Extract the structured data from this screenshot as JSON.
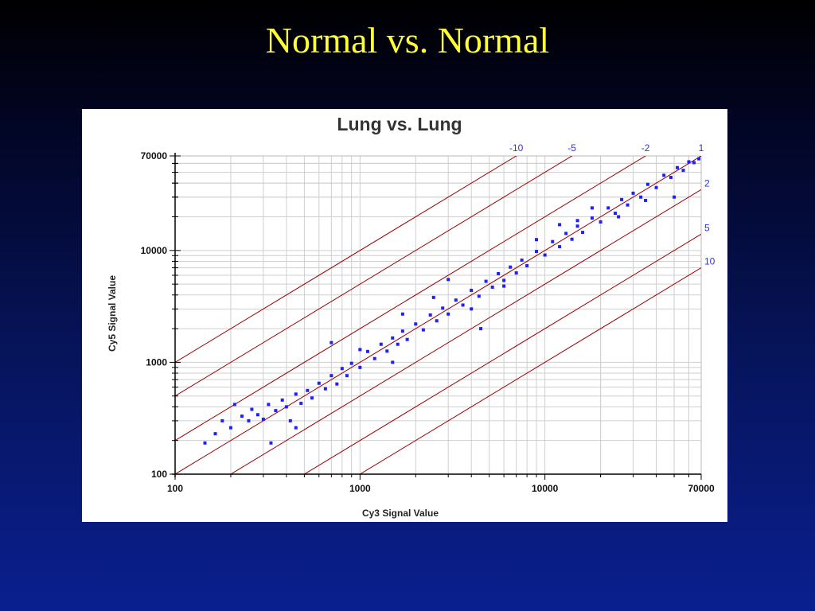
{
  "slide": {
    "title": "Normal vs. Normal"
  },
  "colors": {
    "background": "#0a1f8f",
    "title": "#ffff33",
    "points": "#1f1fff",
    "ratio_lines": "#990000",
    "ratio_labels": "#3333cc",
    "grid": "#cfcfcf"
  },
  "chart_data": {
    "type": "scatter",
    "title": "Lung vs. Lung",
    "xlabel": "Cy3 Signal Value",
    "ylabel": "Cy5 Signal Value",
    "xscale": "log",
    "yscale": "log",
    "xlim": [
      100,
      70000
    ],
    "ylim": [
      100,
      70000
    ],
    "grid": true,
    "xticks": [
      {
        "value": 100,
        "label": "100"
      },
      {
        "value": 1000,
        "label": "1000"
      },
      {
        "value": 10000,
        "label": "10000"
      },
      {
        "value": 70000,
        "label": "70000"
      }
    ],
    "yticks": [
      {
        "value": 100,
        "label": "100"
      },
      {
        "value": 1000,
        "label": "1000"
      },
      {
        "value": 10000,
        "label": "10000"
      },
      {
        "value": 70000,
        "label": "70000"
      }
    ],
    "ratio_lines": [
      {
        "ratio": 10,
        "label": "-10",
        "y_over_x": 10
      },
      {
        "ratio": 5,
        "label": "-5",
        "y_over_x": 5
      },
      {
        "ratio": 2,
        "label": "-2",
        "y_over_x": 2
      },
      {
        "ratio": 1,
        "label": "1",
        "y_over_x": 1
      },
      {
        "ratio": 2,
        "label": "2",
        "y_over_x": 0.5
      },
      {
        "ratio": 5,
        "label": "5",
        "y_over_x": 0.2
      },
      {
        "ratio": 10,
        "label": "10",
        "y_over_x": 0.1
      }
    ],
    "series": [
      {
        "points": [
          [
            145,
            190
          ],
          [
            165,
            230
          ],
          [
            180,
            300
          ],
          [
            200,
            260
          ],
          [
            210,
            420
          ],
          [
            230,
            330
          ],
          [
            250,
            300
          ],
          [
            260,
            380
          ],
          [
            280,
            340
          ],
          [
            300,
            310
          ],
          [
            320,
            420
          ],
          [
            350,
            370
          ],
          [
            380,
            460
          ],
          [
            400,
            400
          ],
          [
            420,
            300
          ],
          [
            450,
            520
          ],
          [
            480,
            430
          ],
          [
            520,
            560
          ],
          [
            550,
            480
          ],
          [
            600,
            650
          ],
          [
            650,
            580
          ],
          [
            700,
            760
          ],
          [
            750,
            640
          ],
          [
            800,
            880
          ],
          [
            850,
            760
          ],
          [
            900,
            980
          ],
          [
            1000,
            900
          ],
          [
            1100,
            1250
          ],
          [
            1200,
            1080
          ],
          [
            1300,
            1450
          ],
          [
            1400,
            1260
          ],
          [
            1500,
            1650
          ],
          [
            1600,
            1450
          ],
          [
            1700,
            1900
          ],
          [
            1800,
            1600
          ],
          [
            2000,
            2200
          ],
          [
            2200,
            1950
          ],
          [
            2400,
            2650
          ],
          [
            2600,
            2350
          ],
          [
            2800,
            3050
          ],
          [
            3000,
            2700
          ],
          [
            3300,
            3600
          ],
          [
            3600,
            3250
          ],
          [
            4000,
            4400
          ],
          [
            4400,
            3900
          ],
          [
            4800,
            5300
          ],
          [
            5200,
            4700
          ],
          [
            5600,
            6200
          ],
          [
            6000,
            5400
          ],
          [
            6500,
            7100
          ],
          [
            7000,
            6300
          ],
          [
            7500,
            8200
          ],
          [
            8000,
            7300
          ],
          [
            9000,
            9800
          ],
          [
            10000,
            9100
          ],
          [
            11000,
            12000
          ],
          [
            12000,
            10800
          ],
          [
            13000,
            14200
          ],
          [
            14000,
            12600
          ],
          [
            15000,
            16500
          ],
          [
            16000,
            14500
          ],
          [
            18000,
            19500
          ],
          [
            20000,
            18000
          ],
          [
            22000,
            24000
          ],
          [
            24000,
            21500
          ],
          [
            26000,
            28500
          ],
          [
            28000,
            25500
          ],
          [
            30000,
            32500
          ],
          [
            33000,
            30000
          ],
          [
            36000,
            39000
          ],
          [
            40000,
            36500
          ],
          [
            44000,
            47000
          ],
          [
            48000,
            45000
          ],
          [
            52000,
            55000
          ],
          [
            56000,
            52000
          ],
          [
            60000,
            62000
          ],
          [
            64000,
            61000
          ],
          [
            68000,
            66000
          ],
          [
            35000,
            28000
          ],
          [
            50000,
            30000
          ],
          [
            25000,
            20000
          ],
          [
            15000,
            18500
          ],
          [
            9000,
            12500
          ],
          [
            4000,
            3000
          ],
          [
            3000,
            5500
          ],
          [
            2500,
            3800
          ],
          [
            4500,
            2000
          ],
          [
            6000,
            4800
          ],
          [
            330,
            190
          ],
          [
            450,
            260
          ],
          [
            700,
            1500
          ],
          [
            1000,
            1300
          ],
          [
            1500,
            1000
          ],
          [
            18000,
            24000
          ],
          [
            12000,
            17000
          ],
          [
            1700,
            2700
          ]
        ]
      }
    ]
  }
}
